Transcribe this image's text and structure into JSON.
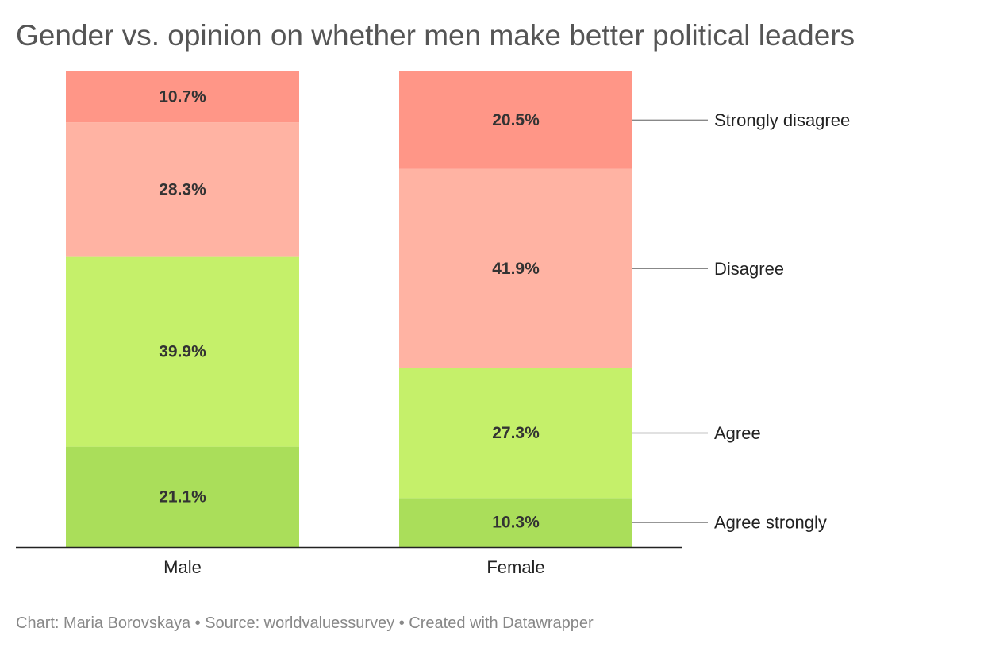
{
  "chart_data": {
    "type": "bar",
    "stacked": true,
    "title": "Gender vs. opinion on whether men make better political leaders",
    "categories": [
      "Male",
      "Female"
    ],
    "series": [
      {
        "name": "Agree strongly",
        "values": [
          21.1,
          10.3
        ],
        "color": "#aade5a"
      },
      {
        "name": "Agree",
        "values": [
          39.9,
          27.3
        ],
        "color": "#c5f06a"
      },
      {
        "name": "Disagree",
        "values": [
          28.3,
          41.9
        ],
        "color": "#ffb3a3"
      },
      {
        "name": "Strongly disagree",
        "values": [
          10.7,
          20.5
        ],
        "color": "#ff9687"
      }
    ],
    "value_suffix": "%",
    "ylim": [
      0,
      100
    ],
    "grid": false,
    "legend": "right, labels aligned to the last bar"
  },
  "footer": {
    "credit": "Chart: Maria Borovskaya • Source: worldvaluessurvey • Created with Datawrapper"
  }
}
